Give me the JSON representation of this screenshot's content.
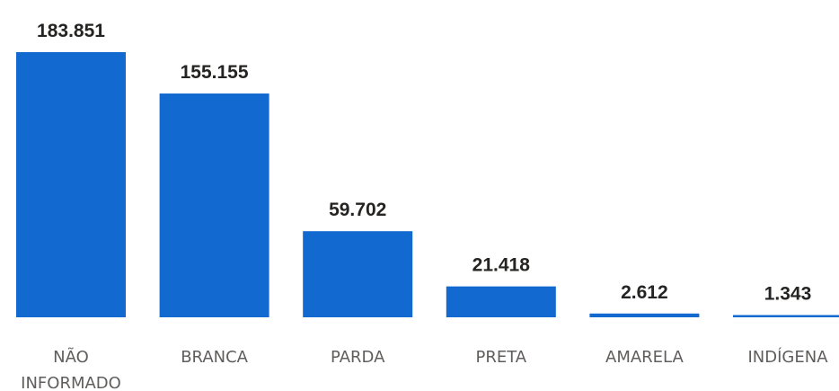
{
  "chart_data": {
    "type": "bar",
    "categories": [
      [
        "NÃO",
        "INFORMADO"
      ],
      [
        "BRANCA"
      ],
      [
        "PARDA"
      ],
      [
        "PRETA"
      ],
      [
        "AMARELA"
      ],
      [
        "INDÍGENA"
      ]
    ],
    "values": [
      183851,
      155155,
      59702,
      21418,
      2612,
      1343
    ],
    "value_labels": [
      "183.851",
      "155.155",
      "59.702",
      "21.418",
      "2.612",
      "1.343"
    ],
    "title": "",
    "xlabel": "",
    "ylabel": "",
    "ylim": [
      0,
      183851
    ],
    "grid": false,
    "legend": "none",
    "bar_color": "#1269cf"
  }
}
